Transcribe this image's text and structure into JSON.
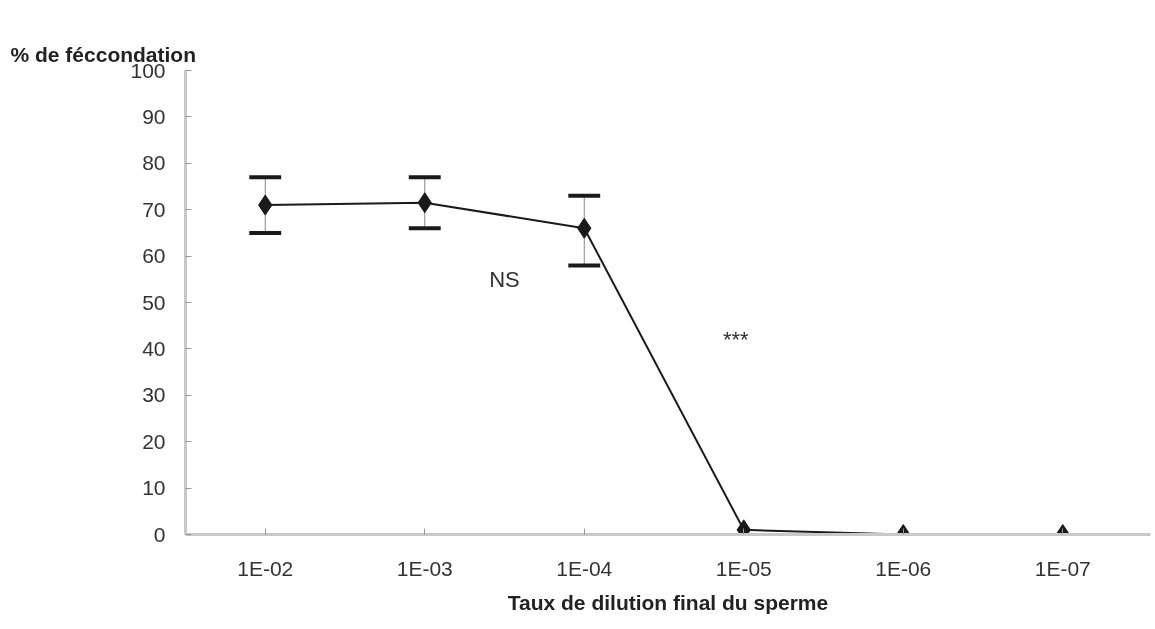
{
  "chart_data": {
    "type": "line",
    "ylabel": "% de féccondation",
    "xlabel": "Taux de dilution final du sperme",
    "categories": [
      "1E-02",
      "1E-03",
      "1E-04",
      "1E-05",
      "1E-06",
      "1E-07"
    ],
    "series": [
      {
        "color": "#1a1a1a",
        "values": [
          71,
          71.5,
          66,
          1,
          0,
          0
        ],
        "errors": [
          [
            65,
            77
          ],
          [
            66,
            77
          ],
          [
            58,
            73
          ],
          null,
          null,
          null
        ]
      }
    ],
    "ylim": [
      0,
      100
    ],
    "yticks": [
      0,
      10,
      20,
      30,
      40,
      50,
      60,
      70,
      80,
      90,
      100
    ],
    "marker": "diamond",
    "line_style": "solid",
    "grid": false,
    "annotations": [
      "NS",
      "***"
    ]
  }
}
